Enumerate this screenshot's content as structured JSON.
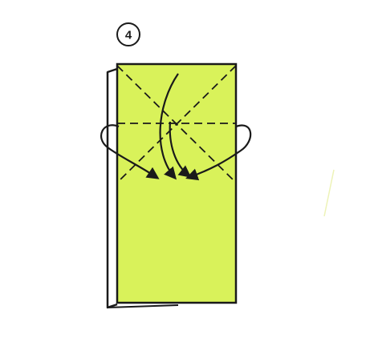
{
  "step": {
    "number": "4"
  },
  "colors": {
    "paper": "#d9f25a",
    "paper_back": "#ffffff",
    "line": "#1a1a1a",
    "background": "#ffffff"
  },
  "fold_lines": {
    "style": "dashed",
    "kinds": [
      "horizontal-crease",
      "diagonal-crease-left",
      "diagonal-crease-right"
    ]
  },
  "arrows": {
    "kinds": [
      "fold-arrow-left",
      "fold-arrow-right",
      "push-arrow-left",
      "push-arrow-right"
    ]
  }
}
